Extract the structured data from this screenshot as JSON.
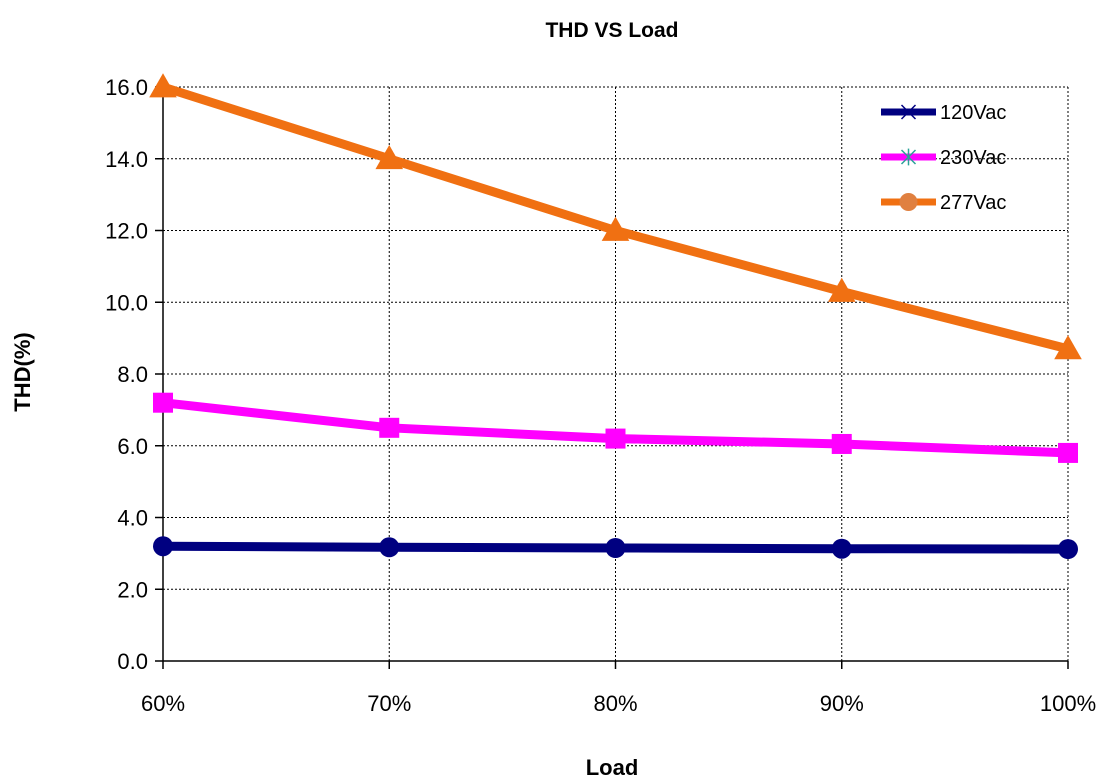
{
  "chart_data": {
    "type": "line",
    "title": "THD  VS Load",
    "xlabel": "Load",
    "ylabel": "THD(%)",
    "categories": [
      "60%",
      "70%",
      "80%",
      "90%",
      "100%"
    ],
    "ylim": [
      0,
      16
    ],
    "yticks": [
      "0.0",
      "2.0",
      "4.0",
      "6.0",
      "8.0",
      "10.0",
      "12.0",
      "14.0",
      "16.0"
    ],
    "grid": true,
    "legend_position": "top-right",
    "series": [
      {
        "name": "120Vac",
        "values": [
          3.2,
          3.17,
          3.15,
          3.13,
          3.12
        ],
        "color": "#000080",
        "marker": "circle",
        "legend_marker": "x"
      },
      {
        "name": "230Vac",
        "values": [
          7.2,
          6.5,
          6.2,
          6.05,
          5.8
        ],
        "color": "#ff00ff",
        "marker": "square",
        "legend_marker": "asterisk",
        "legend_marker_color": "#2aa198"
      },
      {
        "name": "277Vac",
        "values": [
          16.0,
          14.0,
          12.0,
          10.3,
          8.7
        ],
        "color": "#f07012",
        "marker": "triangle",
        "legend_marker": "circle",
        "legend_marker_color": "#e08040"
      }
    ]
  }
}
